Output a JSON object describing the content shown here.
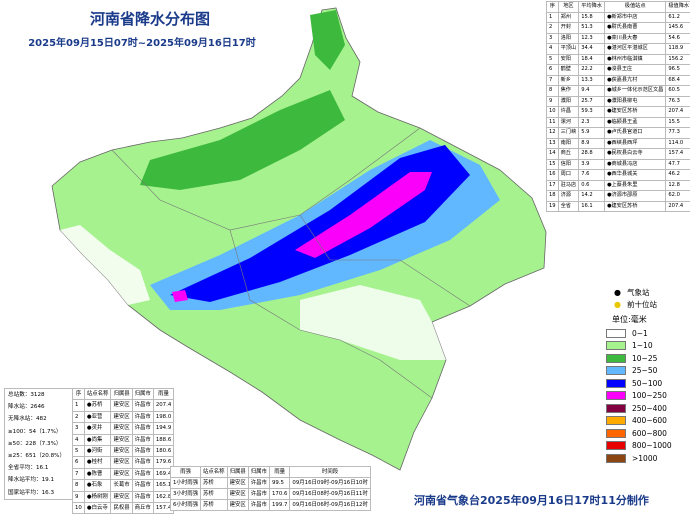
{
  "header": {
    "title": "河南省降水分布图",
    "subtitle": "2025年09月15日07时~2025年09月16日17时"
  },
  "city_table": {
    "columns": [
      "序",
      "地区",
      "平均降水",
      "极值站点",
      "极值降水"
    ],
    "rows": [
      [
        "1",
        "郑州",
        "15.8",
        "●新郑市中店",
        "61.2"
      ],
      [
        "2",
        "开封",
        "51.3",
        "●尉氏县南曹",
        "145.6"
      ],
      [
        "3",
        "洛阳",
        "12.3",
        "●栾川县大春",
        "54.6"
      ],
      [
        "4",
        "平顶山",
        "34.4",
        "●湛河区平湛城区",
        "118.9"
      ],
      [
        "5",
        "安阳",
        "18.4",
        "●林州市临淇镇",
        "156.2"
      ],
      [
        "6",
        "鹤壁",
        "22.2",
        "●浚县王庄",
        "96.5"
      ],
      [
        "7",
        "新乡",
        "13.3",
        "●获嘉县亢村",
        "68.4"
      ],
      [
        "8",
        "焦作",
        "9.4",
        "●城乡一体化示范区文昌",
        "60.5"
      ],
      [
        "9",
        "濮阳",
        "25.7",
        "●濮阳县柳屯",
        "76.3"
      ],
      [
        "10",
        "许昌",
        "59.3",
        "●建安区苏桥",
        "207.4"
      ],
      [
        "11",
        "漯河",
        "2.3",
        "●临颍县王孟",
        "15.5"
      ],
      [
        "12",
        "三门峡",
        "5.9",
        "●卢氏县官道口",
        "77.3"
      ],
      [
        "13",
        "南阳",
        "8.9",
        "●西峡县西坪",
        "114.0"
      ],
      [
        "14",
        "商丘",
        "28.8",
        "●民权县白云寺",
        "157.4"
      ],
      [
        "15",
        "信阳",
        "3.9",
        "●商城县冯店",
        "47.7"
      ],
      [
        "16",
        "周口",
        "7.6",
        "●西华县城关",
        "46.2"
      ],
      [
        "17",
        "驻马店",
        "0.6",
        "●上蔡县朱里",
        "12.8"
      ],
      [
        "18",
        "济源",
        "14.2",
        "●济源市邵原",
        "62.0"
      ],
      [
        "19",
        "全省",
        "16.1",
        "●建安区苏桥",
        "207.4"
      ]
    ]
  },
  "stats": [
    "总站数：3128",
    "降水站：2646",
    "无降水站：482",
    "≥100：54（1.7%）",
    "≥50：228（7.3%）",
    "≥25：651（20.8%）",
    "全省平均：16.1",
    "降水站平均：19.1",
    "国家站平均：16.3"
  ],
  "top10_table": {
    "columns": [
      "序",
      "站点名称",
      "归属县",
      "归属市",
      "雨量"
    ],
    "rows": [
      [
        "1",
        "●苏桥",
        "建安区",
        "许昌市",
        "207.4"
      ],
      [
        "2",
        "●亚营",
        "建安区",
        "许昌市",
        "198.0"
      ],
      [
        "3",
        "●灵井",
        "建安区",
        "许昌市",
        "194.9"
      ],
      [
        "4",
        "●尚集",
        "建安区",
        "许昌市",
        "188.6"
      ],
      [
        "5",
        "●河街",
        "建安区",
        "许昌市",
        "180.6"
      ],
      [
        "6",
        "●桂村",
        "建安区",
        "许昌市",
        "179.6"
      ],
      [
        "7",
        "●陈曹",
        "建安区",
        "许昌市",
        "169.4"
      ],
      [
        "8",
        "●石象",
        "长葛市",
        "许昌市",
        "165.1"
      ],
      [
        "9",
        "●杨树刚",
        "建安区",
        "许昌市",
        "162.8"
      ],
      [
        "10",
        "●白云寺",
        "民权县",
        "商丘市",
        "157.4"
      ]
    ]
  },
  "hourly_table": {
    "columns": [
      "雨强",
      "站点名称",
      "归属县",
      "归属市",
      "雨量",
      "时间段"
    ],
    "rows": [
      [
        "1小时雨强",
        "苏桥",
        "建安区",
        "许昌市",
        "99.5",
        "09月16日09时-09月16日10时"
      ],
      [
        "3小时雨强",
        "苏桥",
        "建安区",
        "许昌市",
        "170.6",
        "09月16日08时-09月16日11时"
      ],
      [
        "6小时雨强",
        "苏桥",
        "建安区",
        "许昌市",
        "199.7",
        "09月16日06时-09月16日12时"
      ]
    ]
  },
  "legend": {
    "station": "气象站",
    "top_station": "前十位站",
    "unit": "单位:毫米",
    "classes": [
      {
        "label": "0~1",
        "color": "#ffffff"
      },
      {
        "label": "1~10",
        "color": "#a6f28f"
      },
      {
        "label": "10~25",
        "color": "#3dba3d"
      },
      {
        "label": "25~50",
        "color": "#61b8ff"
      },
      {
        "label": "50~100",
        "color": "#0000ff"
      },
      {
        "label": "100~250",
        "color": "#fa00fa"
      },
      {
        "label": "250~400",
        "color": "#800040"
      },
      {
        "label": "400~600",
        "color": "#ffaa00"
      },
      {
        "label": "600~800",
        "color": "#ff6600"
      },
      {
        "label": "800~1000",
        "color": "#e60000"
      },
      {
        "label": ">1000",
        "color": "#8b4513"
      }
    ]
  },
  "footer": "河南省气象台2025年09月16日17时11分制作"
}
